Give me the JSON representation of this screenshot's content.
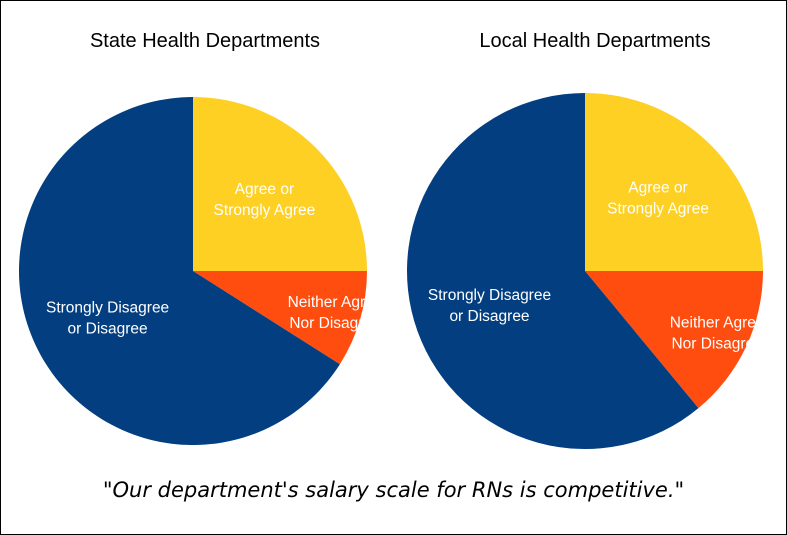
{
  "caption": "\"Our department's salary scale for RNs is competitive.\"",
  "colors": {
    "agree": "#FDD023",
    "neither": "#FF4C0F",
    "disagree": "#033F80",
    "label_text": "#FFFFFF"
  },
  "chart_data": [
    {
      "type": "pie",
      "title": "State Health Departments",
      "slices": [
        {
          "label": "Agree or Strongly Agree",
          "lines": [
            "Agree or",
            "Strongly Agree"
          ],
          "value": 25,
          "color": "#FDD023"
        },
        {
          "label": "Neither Agree Nor Disagree",
          "lines": [
            "Neither Agree",
            "Nor Disagree"
          ],
          "value": 9,
          "color": "#FF4C0F"
        },
        {
          "label": "Strongly Disagree or Disagree",
          "lines": [
            "Strongly Disagree",
            "or Disagree"
          ],
          "value": 66,
          "color": "#033F80"
        }
      ]
    },
    {
      "type": "pie",
      "title": "Local Health Departments",
      "slices": [
        {
          "label": "Agree or Strongly Agree",
          "lines": [
            "Agree or",
            "Strongly Agree"
          ],
          "value": 25,
          "color": "#FDD023"
        },
        {
          "label": "Neither Agree Nor Disagree",
          "lines": [
            "Neither Agree",
            "Nor Disagree"
          ],
          "value": 14,
          "color": "#FF4C0F"
        },
        {
          "label": "Strongly Disagree or Disagree",
          "lines": [
            "Strongly Disagree",
            "or Disagree"
          ],
          "value": 61,
          "color": "#033F80"
        }
      ]
    }
  ]
}
